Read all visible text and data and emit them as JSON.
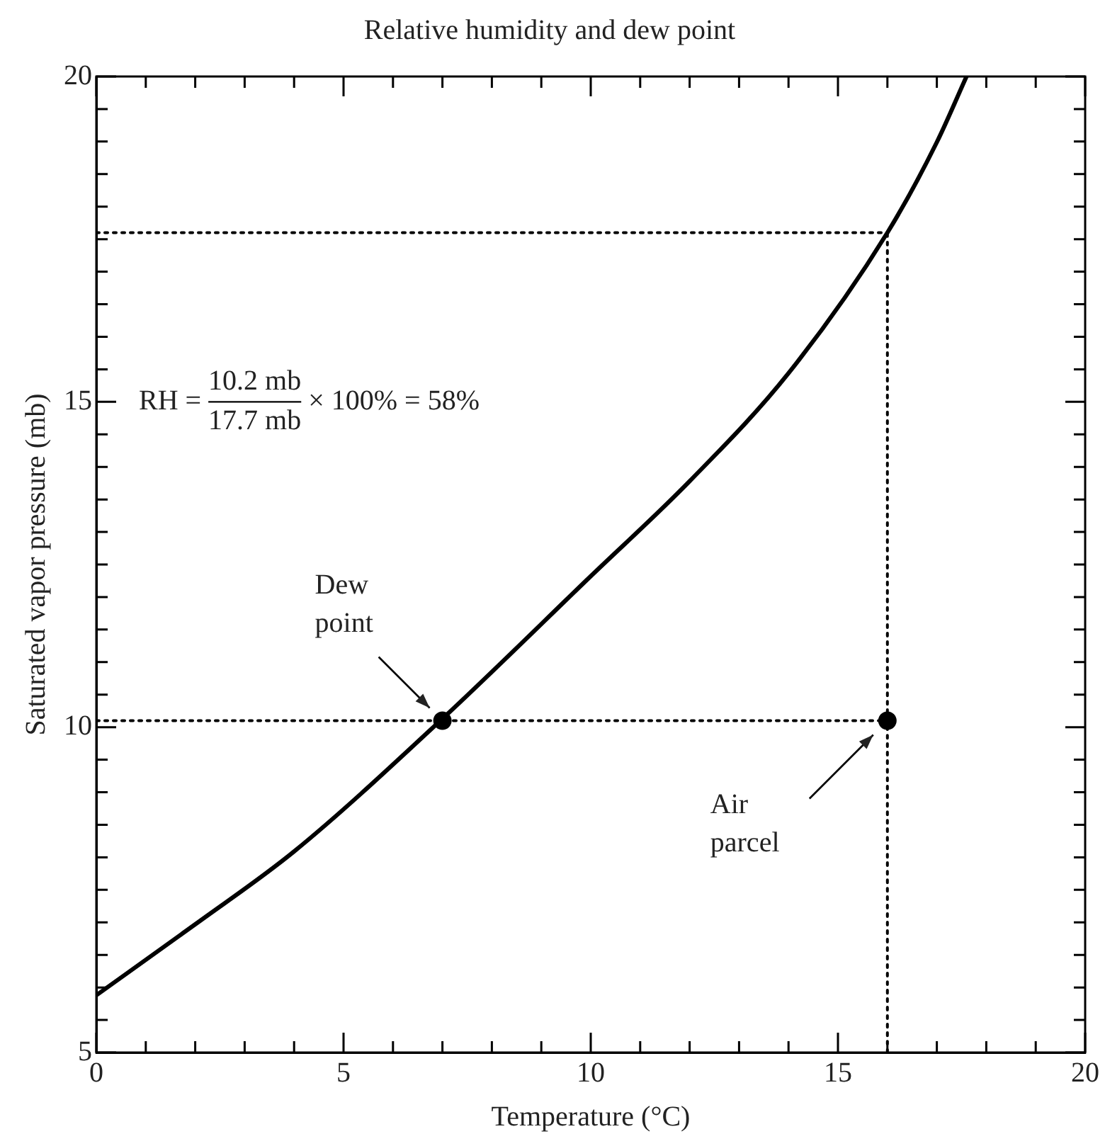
{
  "chart_data": {
    "type": "line",
    "title": "Relative humidity and dew point",
    "xlabel": "Temperature (°C)",
    "ylabel": "Saturated vapor pressure (mb)",
    "xlim": [
      0,
      20
    ],
    "ylim": [
      5,
      20
    ],
    "xticks": [
      0,
      {
        "value": 1,
        "label": null
      },
      {
        "value": 2,
        "label": null
      },
      {
        "value": 3,
        "label": null
      },
      {
        "value": 4,
        "label": null
      },
      5,
      {
        "value": 6,
        "label": null
      },
      {
        "value": 7,
        "label": null
      },
      {
        "value": 8,
        "label": null
      },
      {
        "value": 9,
        "label": null
      },
      10,
      {
        "value": 11,
        "label": null
      },
      {
        "value": 12,
        "label": null
      },
      {
        "value": 13,
        "label": null
      },
      {
        "value": 14,
        "label": null
      },
      15,
      {
        "value": 16,
        "label": null
      },
      {
        "value": 17,
        "label": null
      },
      {
        "value": 18,
        "label": null
      },
      {
        "value": 19,
        "label": null
      },
      20
    ],
    "yticks": [
      5,
      {
        "value": 5.5,
        "label": null
      },
      {
        "value": 6,
        "label": null
      },
      {
        "value": 6.5,
        "label": null
      },
      {
        "value": 7,
        "label": null
      },
      {
        "value": 7.5,
        "label": null
      },
      {
        "value": 8,
        "label": null
      },
      {
        "value": 8.5,
        "label": null
      },
      {
        "value": 9,
        "label": null
      },
      {
        "value": 9.5,
        "label": null
      },
      10,
      {
        "value": 10.5,
        "label": null
      },
      {
        "value": 11,
        "label": null
      },
      {
        "value": 11.5,
        "label": null
      },
      {
        "value": 12,
        "label": null
      },
      {
        "value": 12.5,
        "label": null
      },
      {
        "value": 13,
        "label": null
      },
      {
        "value": 13.5,
        "label": null
      },
      {
        "value": 14,
        "label": null
      },
      {
        "value": 14.5,
        "label": null
      },
      15,
      {
        "value": 15.5,
        "label": null
      },
      {
        "value": 16,
        "label": null
      },
      {
        "value": 16.5,
        "label": null
      },
      {
        "value": 17,
        "label": null
      },
      {
        "value": 17.5,
        "label": null
      },
      {
        "value": 18,
        "label": null
      },
      {
        "value": 18.5,
        "label": null
      },
      {
        "value": 19,
        "label": null
      },
      {
        "value": 19.5,
        "label": null
      },
      20
    ],
    "grid": false,
    "legend": false,
    "series": [
      {
        "type": "line",
        "color": "#000000",
        "line_style": "solid",
        "marker": "none",
        "x": [
          0,
          2,
          4,
          7,
          10,
          12,
          14,
          16,
          17,
          17.6
        ],
        "values": [
          5.88,
          6.97,
          8.09,
          10.13,
          12.32,
          13.78,
          15.44,
          17.6,
          18.99,
          20
        ]
      },
      {
        "type": "line",
        "color": "#000000",
        "line_style": "dotted",
        "marker": "none",
        "x": [
          0,
          16
        ],
        "values": [
          10.1,
          10.1
        ]
      },
      {
        "type": "line",
        "color": "#000000",
        "line_style": "dotted",
        "marker": "none",
        "x": [
          0,
          16
        ],
        "values": [
          17.6,
          17.6
        ]
      },
      {
        "type": "line",
        "color": "#000000",
        "line_style": "dotted",
        "marker": "none",
        "x": [
          16,
          16
        ],
        "values": [
          5,
          17.6
        ]
      },
      {
        "type": "scatter",
        "color": "#000000",
        "marker": "circle",
        "x": [
          7,
          16
        ],
        "values": [
          10.1,
          10.1
        ]
      }
    ],
    "annotations": [
      "Dew point",
      "Air parcel",
      "RH =",
      "10.2 mb",
      "17.7 mb",
      "× 100% = 58%"
    ]
  }
}
